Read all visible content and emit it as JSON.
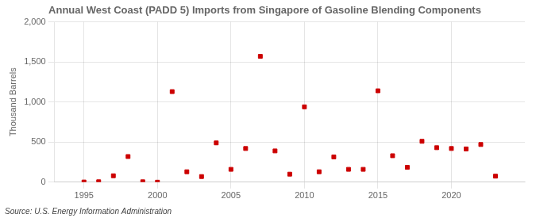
{
  "chart_data": {
    "type": "scatter",
    "title": "Annual West Coast (PADD 5) Imports from Singapore of Gasoline Blending Components",
    "ylabel": "Thousand Barrels",
    "source": "Source: U.S. Energy Information Administration",
    "x": [
      1995,
      1996,
      1997,
      1998,
      1999,
      2000,
      2001,
      2002,
      2003,
      2004,
      2005,
      2006,
      2007,
      2008,
      2009,
      2010,
      2011,
      2012,
      2013,
      2014,
      2015,
      2016,
      2017,
      2018,
      2019,
      2020,
      2021,
      2022,
      2023
    ],
    "values": [
      2,
      5,
      80,
      320,
      5,
      0,
      1130,
      130,
      70,
      490,
      160,
      420,
      1570,
      390,
      100,
      940,
      130,
      315,
      160,
      160,
      1140,
      330,
      185,
      510,
      430,
      420,
      415,
      470,
      75
    ],
    "color": "#cc0000",
    "marker": "square",
    "xlim": [
      1993,
      2025
    ],
    "ylim": [
      0,
      2000
    ],
    "xticks": [
      1995,
      2000,
      2005,
      2010,
      2015,
      2020
    ],
    "yticks": [
      0,
      500,
      {
        "value": 1000,
        "label": "1,000"
      },
      {
        "value": 1500,
        "label": "1,500"
      },
      {
        "value": 2000,
        "label": "2,000"
      }
    ],
    "grid": true
  }
}
